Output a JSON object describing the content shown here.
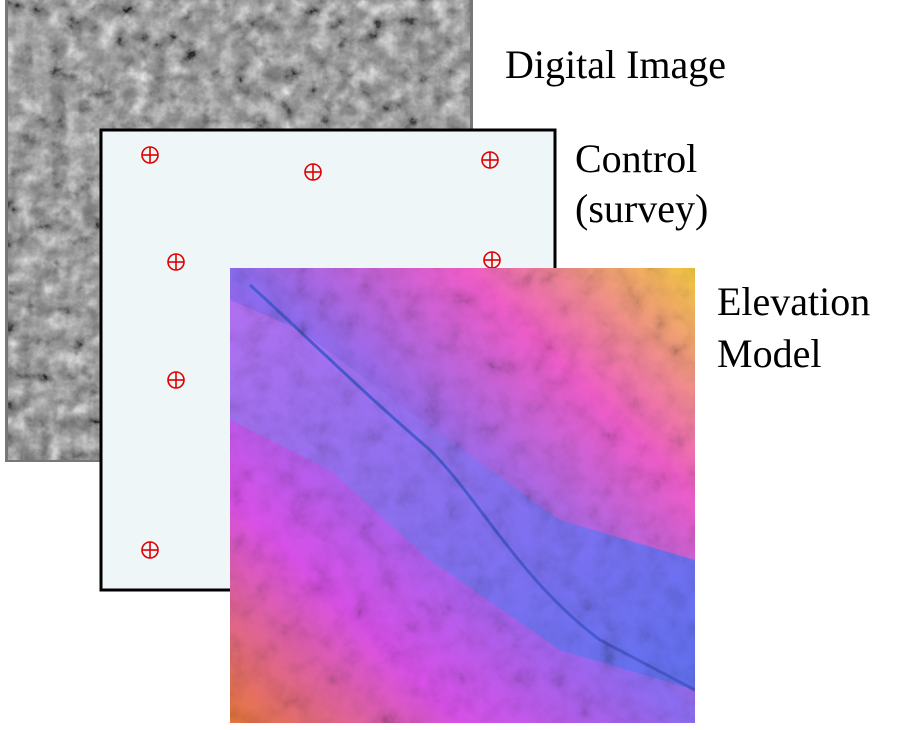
{
  "layers": [
    {
      "label": {
        "lines": [
          "Digital Image"
        ]
      }
    },
    {
      "label": {
        "lines": [
          "Control",
          "(survey)"
        ]
      }
    },
    {
      "label": {
        "lines": [
          "Elevation",
          "Model"
        ]
      }
    }
  ]
}
